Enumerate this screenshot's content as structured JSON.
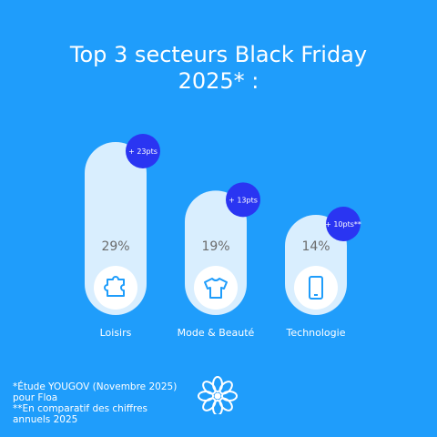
{
  "title_line1": "Top 3 secteurs Black Friday",
  "title_line2": "2025* :",
  "chart_data": {
    "type": "bar",
    "title": "Top 3 secteurs Black Friday 2025* :",
    "categories": [
      "Loisirs",
      "Mode & Beauté",
      "Technologie"
    ],
    "values": [
      29,
      19,
      14
    ],
    "value_labels": [
      "29%",
      "19%",
      "14%"
    ],
    "changes": [
      "+ 23pts",
      "+ 13pts",
      "+ 10pts**"
    ],
    "icons": [
      "puzzle-icon",
      "tshirt-icon",
      "smartphone-icon"
    ],
    "ylim": [
      0,
      29
    ]
  },
  "footnotes": {
    "line1": "*Étude YOUGOV (Novembre 2025)",
    "line2": "pour Floa",
    "line3": "**En comparatif des chiffres",
    "line4": "annuels 2025"
  },
  "logo": "flower-logo-icon",
  "colors": {
    "background": "#1f9dfb",
    "bar": "#d9eefe",
    "badge": "#2a35f2",
    "icon_circle": "#ffffff",
    "icon_stroke": "#1f9dfb",
    "value_text": "#6b6b6b"
  }
}
